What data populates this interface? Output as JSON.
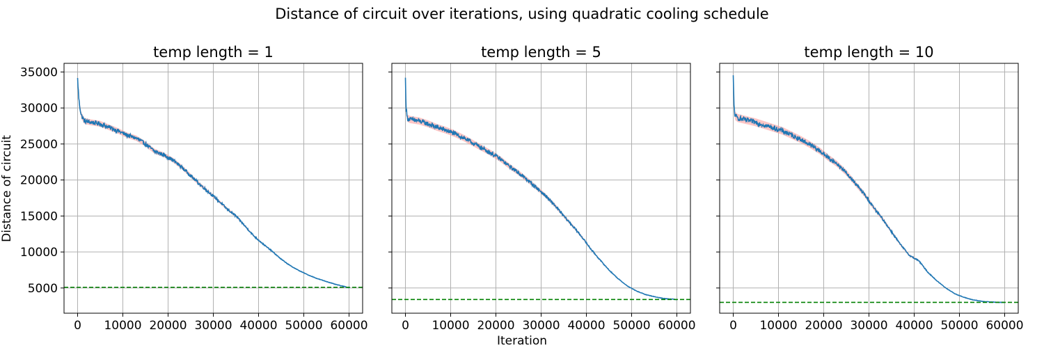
{
  "figure": {
    "suptitle": "Distance of circuit over iterations, using quadratic cooling schedule",
    "xlabel": "Iteration",
    "ylabel": "Distance of circuit"
  },
  "chart_data": [
    {
      "type": "line",
      "title": "temp length = 1",
      "xlim": [
        -3000,
        63000
      ],
      "ylim": [
        1500,
        36200
      ],
      "xticks": [
        0,
        10000,
        20000,
        30000,
        40000,
        50000,
        60000
      ],
      "yticks": [
        5000,
        10000,
        15000,
        20000,
        25000,
        30000,
        35000
      ],
      "grid": true,
      "series": [
        {
          "role": "mean",
          "color": "#1f77b4",
          "x": [
            0,
            300,
            800,
            1500,
            3000,
            5000,
            7000,
            9000,
            11000,
            13000,
            15000,
            17000,
            19000,
            21000,
            23000,
            25000,
            27000,
            29000,
            31000,
            33000,
            35000,
            37000,
            39000,
            41000,
            43000,
            45000,
            47000,
            49000,
            51000,
            53000,
            55000,
            57000,
            59000,
            60000
          ],
          "y": [
            34000,
            31000,
            29000,
            28200,
            28000,
            27800,
            27300,
            26800,
            26200,
            25800,
            25000,
            24000,
            23500,
            22800,
            21800,
            20600,
            19400,
            18300,
            17200,
            16000,
            15000,
            13600,
            12200,
            11100,
            10100,
            9000,
            8100,
            7400,
            6800,
            6300,
            5900,
            5500,
            5200,
            5050
          ]
        },
        {
          "role": "band",
          "color": "#ff9896",
          "spread": 450
        },
        {
          "role": "reference",
          "color": "#008000",
          "style": "dashed",
          "y": 5100
        }
      ]
    },
    {
      "type": "line",
      "title": "temp length = 5",
      "xlim": [
        -3000,
        63000
      ],
      "ylim": [
        1500,
        36200
      ],
      "xticks": [
        0,
        10000,
        20000,
        30000,
        40000,
        50000,
        60000
      ],
      "yticks": [
        5000,
        10000,
        15000,
        20000,
        25000,
        30000,
        35000
      ],
      "grid": true,
      "series": [
        {
          "role": "mean",
          "color": "#1f77b4",
          "x": [
            0,
            150,
            400,
            1000,
            3000,
            5000,
            7000,
            9000,
            11000,
            13000,
            15000,
            17000,
            19000,
            21000,
            23000,
            25000,
            27000,
            29000,
            31000,
            33000,
            35000,
            37000,
            39000,
            41000,
            43000,
            45000,
            47000,
            49000,
            51000,
            53000,
            55000,
            57000,
            59000,
            60000
          ],
          "y": [
            34000,
            30000,
            28600,
            28400,
            28200,
            27800,
            27300,
            26900,
            26400,
            25800,
            25100,
            24400,
            23700,
            22900,
            21900,
            21000,
            20000,
            18900,
            17800,
            16500,
            15000,
            13600,
            12100,
            10400,
            8900,
            7500,
            6300,
            5300,
            4600,
            4100,
            3800,
            3550,
            3450,
            3400
          ]
        },
        {
          "role": "band",
          "color": "#ff9896",
          "spread": 500
        },
        {
          "role": "reference",
          "color": "#008000",
          "style": "dashed",
          "y": 3400
        }
      ]
    },
    {
      "type": "line",
      "title": "temp length = 10",
      "xlim": [
        -3000,
        63000
      ],
      "ylim": [
        1500,
        36200
      ],
      "xticks": [
        0,
        10000,
        20000,
        30000,
        40000,
        50000,
        60000
      ],
      "yticks": [
        5000,
        10000,
        15000,
        20000,
        25000,
        30000,
        35000
      ],
      "grid": true,
      "series": [
        {
          "role": "mean",
          "color": "#1f77b4",
          "x": [
            0,
            150,
            400,
            1000,
            3000,
            5000,
            7000,
            9000,
            11000,
            13000,
            15000,
            17000,
            19000,
            21000,
            23000,
            25000,
            27000,
            29000,
            31000,
            33000,
            35000,
            37000,
            39000,
            41000,
            43000,
            45000,
            47000,
            49000,
            51000,
            53000,
            55000,
            57000,
            59000,
            60000
          ],
          "y": [
            34300,
            30500,
            28900,
            28600,
            28300,
            28000,
            27600,
            27200,
            26800,
            26200,
            25600,
            24900,
            24100,
            23100,
            22200,
            21000,
            19500,
            18000,
            16200,
            14600,
            12800,
            11000,
            9500,
            8800,
            7200,
            6000,
            5000,
            4200,
            3700,
            3350,
            3150,
            3050,
            3000,
            3000
          ]
        },
        {
          "role": "band",
          "color": "#ff9896",
          "spread": 550
        },
        {
          "role": "reference",
          "color": "#008000",
          "style": "dashed",
          "y": 3000
        }
      ]
    }
  ]
}
